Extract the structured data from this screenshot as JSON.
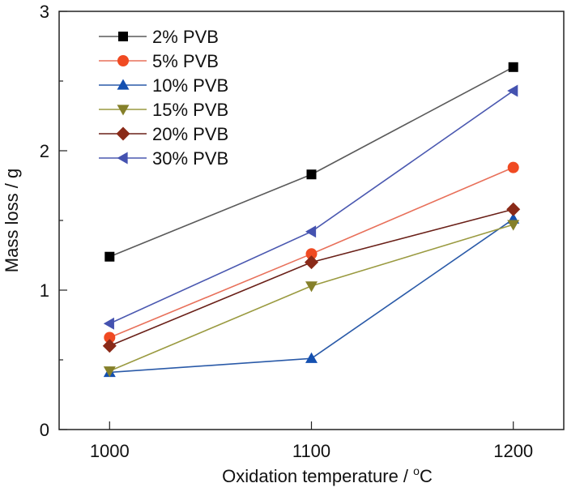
{
  "chart_data": {
    "type": "line",
    "title": "",
    "xlabel": "Oxidation temperature / °C",
    "xlabel_main": "Oxidation temperature / ",
    "xlabel_sup": "o",
    "xlabel_unit": "C",
    "ylabel": "Mass loss / g",
    "x": [
      1000,
      1100,
      1200
    ],
    "xlim": [
      975,
      1225
    ],
    "ylim": [
      0,
      3
    ],
    "x_ticks": [
      "1000",
      "1100",
      "1200"
    ],
    "y_ticks": [
      "0",
      "1",
      "2",
      "3"
    ],
    "y_minor_ticks": [
      0.5,
      1.5,
      2.5
    ],
    "grid": false,
    "legend_position": "top-left",
    "series": [
      {
        "name": "2% PVB",
        "color": "#5a5a5a",
        "marker_color": "#000000",
        "marker": "square",
        "values": [
          1.24,
          1.83,
          2.6
        ]
      },
      {
        "name": "5% PVB",
        "color": "#e8705a",
        "marker_color": "#f04a22",
        "marker": "circle",
        "values": [
          0.66,
          1.26,
          1.88
        ]
      },
      {
        "name": "10% PVB",
        "color": "#2a5aa8",
        "marker_color": "#1450b0",
        "marker": "triangle-up",
        "values": [
          0.41,
          0.51,
          1.51
        ]
      },
      {
        "name": "15% PVB",
        "color": "#9a9a40",
        "marker_color": "#85802a",
        "marker": "triangle-down",
        "values": [
          0.42,
          1.03,
          1.47
        ]
      },
      {
        "name": "20% PVB",
        "color": "#6a2018",
        "marker_color": "#8a2a18",
        "marker": "diamond",
        "values": [
          0.6,
          1.2,
          1.58
        ]
      },
      {
        "name": "30% PVB",
        "color": "#4a58b0",
        "marker_color": "#4452b0",
        "marker": "triangle-left",
        "values": [
          0.76,
          1.42,
          2.43
        ]
      }
    ]
  }
}
